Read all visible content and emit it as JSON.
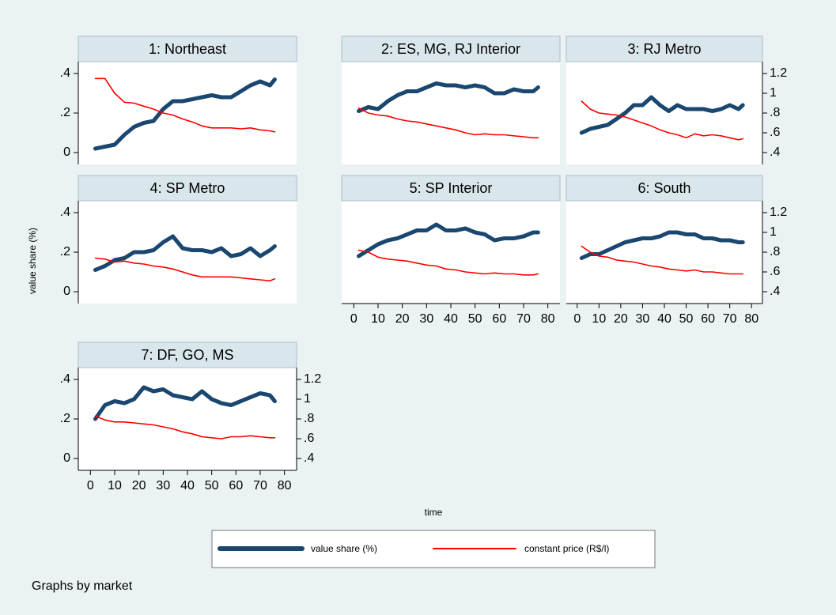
{
  "axes": {
    "xlim": [
      -5,
      85
    ],
    "xticks": [
      0,
      10,
      20,
      30,
      40,
      50,
      60,
      70,
      80
    ],
    "ylim": [
      -0.06,
      0.46
    ],
    "yticks": [
      0,
      {
        "value": 0.2,
        "label": ".2"
      },
      {
        "value": 0.4,
        "label": ".4"
      }
    ],
    "y2lim": [
      0.28,
      1.32
    ],
    "y2ticks": [
      {
        "value": 0.4,
        "label": ".4"
      },
      {
        "value": 0.6,
        "label": ".6"
      },
      {
        "value": 0.8,
        "label": ".8"
      },
      1,
      1.2
    ]
  },
  "ytitle": "value share (%)",
  "xtitle": "time",
  "note": "Graphs by market",
  "chart_data": [
    {
      "type": "line",
      "title": "1: Northeast",
      "x": [
        2,
        6,
        10,
        14,
        18,
        22,
        26,
        30,
        34,
        38,
        42,
        46,
        50,
        54,
        58,
        62,
        66,
        70,
        74,
        76
      ],
      "series": [
        {
          "name": "value share (%)",
          "color": "#1a476f",
          "values": [
            0.02,
            0.03,
            0.04,
            0.09,
            0.13,
            0.15,
            0.16,
            0.22,
            0.26,
            0.26,
            0.27,
            0.28,
            0.29,
            0.28,
            0.28,
            0.31,
            0.34,
            0.36,
            0.34,
            0.37
          ]
        },
        {
          "name": "constant price (R$/l)",
          "color": "#ff0000",
          "axis": "y2",
          "values": [
            1.15,
            1.15,
            1.0,
            0.91,
            0.9,
            0.87,
            0.84,
            0.8,
            0.78,
            0.74,
            0.71,
            0.67,
            0.65,
            0.65,
            0.65,
            0.64,
            0.65,
            0.63,
            0.62,
            0.61
          ]
        }
      ]
    },
    {
      "type": "line",
      "title": "2: ES, MG, RJ Interior",
      "x": [
        2,
        6,
        10,
        14,
        18,
        22,
        26,
        30,
        34,
        38,
        42,
        46,
        50,
        54,
        58,
        62,
        66,
        70,
        74,
        76
      ],
      "series": [
        {
          "name": "value share (%)",
          "color": "#1a476f",
          "values": [
            0.21,
            0.23,
            0.22,
            0.26,
            0.29,
            0.31,
            0.31,
            0.33,
            0.35,
            0.34,
            0.34,
            0.33,
            0.34,
            0.33,
            0.3,
            0.3,
            0.32,
            0.31,
            0.31,
            0.33
          ]
        },
        {
          "name": "constant price (R$/l)",
          "color": "#ff0000",
          "axis": "y2",
          "values": [
            0.85,
            0.8,
            0.78,
            0.77,
            0.74,
            0.72,
            0.71,
            0.69,
            0.67,
            0.65,
            0.63,
            0.6,
            0.58,
            0.59,
            0.58,
            0.58,
            0.57,
            0.56,
            0.55,
            0.55
          ]
        }
      ]
    },
    {
      "type": "line",
      "title": "3: RJ Metro",
      "x": [
        2,
        6,
        10,
        14,
        18,
        22,
        26,
        30,
        34,
        38,
        42,
        46,
        50,
        54,
        58,
        62,
        66,
        70,
        74,
        76
      ],
      "series": [
        {
          "name": "value share (%)",
          "color": "#1a476f",
          "values": [
            0.1,
            0.12,
            0.13,
            0.14,
            0.17,
            0.2,
            0.24,
            0.24,
            0.28,
            0.24,
            0.21,
            0.24,
            0.22,
            0.22,
            0.22,
            0.21,
            0.22,
            0.24,
            0.22,
            0.24
          ]
        },
        {
          "name": "constant price (R$/l)",
          "color": "#ff0000",
          "axis": "y2",
          "values": [
            0.92,
            0.84,
            0.8,
            0.79,
            0.78,
            0.76,
            0.73,
            0.7,
            0.67,
            0.63,
            0.6,
            0.58,
            0.55,
            0.59,
            0.57,
            0.58,
            0.57,
            0.55,
            0.53,
            0.54
          ]
        }
      ]
    },
    {
      "type": "line",
      "title": "4: SP Metro",
      "x": [
        2,
        6,
        10,
        14,
        18,
        22,
        26,
        30,
        34,
        38,
        42,
        46,
        50,
        54,
        58,
        62,
        66,
        70,
        74,
        76
      ],
      "series": [
        {
          "name": "value share (%)",
          "color": "#1a476f",
          "values": [
            0.11,
            0.13,
            0.16,
            0.17,
            0.2,
            0.2,
            0.21,
            0.25,
            0.28,
            0.22,
            0.21,
            0.21,
            0.2,
            0.22,
            0.18,
            0.19,
            0.22,
            0.18,
            0.21,
            0.23
          ]
        },
        {
          "name": "constant price (R$/l)",
          "color": "#ff0000",
          "axis": "y2",
          "values": [
            0.74,
            0.73,
            0.7,
            0.71,
            0.69,
            0.68,
            0.66,
            0.65,
            0.63,
            0.6,
            0.57,
            0.55,
            0.55,
            0.55,
            0.55,
            0.54,
            0.53,
            0.52,
            0.51,
            0.53
          ]
        }
      ]
    },
    {
      "type": "line",
      "title": "5: SP Interior",
      "x": [
        2,
        6,
        10,
        14,
        18,
        22,
        26,
        30,
        34,
        38,
        42,
        46,
        50,
        54,
        58,
        62,
        66,
        70,
        74,
        76
      ],
      "series": [
        {
          "name": "value share (%)",
          "color": "#1a476f",
          "values": [
            0.18,
            0.21,
            0.24,
            0.26,
            0.27,
            0.29,
            0.31,
            0.31,
            0.34,
            0.31,
            0.31,
            0.32,
            0.3,
            0.29,
            0.26,
            0.27,
            0.27,
            0.28,
            0.3,
            0.3
          ]
        },
        {
          "name": "constant price (R$/l)",
          "color": "#ff0000",
          "axis": "y2",
          "values": [
            0.82,
            0.8,
            0.75,
            0.73,
            0.72,
            0.71,
            0.69,
            0.67,
            0.66,
            0.63,
            0.62,
            0.6,
            0.59,
            0.58,
            0.59,
            0.58,
            0.58,
            0.57,
            0.57,
            0.58
          ]
        }
      ]
    },
    {
      "type": "line",
      "title": "6: South",
      "x": [
        2,
        6,
        10,
        14,
        18,
        22,
        26,
        30,
        34,
        38,
        42,
        46,
        50,
        54,
        58,
        62,
        66,
        70,
        74,
        76
      ],
      "series": [
        {
          "name": "value share (%)",
          "color": "#1a476f",
          "values": [
            0.17,
            0.19,
            0.19,
            0.21,
            0.23,
            0.25,
            0.26,
            0.27,
            0.27,
            0.28,
            0.3,
            0.3,
            0.29,
            0.29,
            0.27,
            0.27,
            0.26,
            0.26,
            0.25,
            0.25
          ]
        },
        {
          "name": "constant price (R$/l)",
          "color": "#ff0000",
          "axis": "y2",
          "values": [
            0.86,
            0.8,
            0.76,
            0.75,
            0.72,
            0.71,
            0.7,
            0.68,
            0.66,
            0.65,
            0.63,
            0.62,
            0.61,
            0.62,
            0.6,
            0.6,
            0.59,
            0.58,
            0.58,
            0.58
          ]
        }
      ]
    },
    {
      "type": "line",
      "title": "7: DF, GO, MS",
      "x": [
        2,
        6,
        10,
        14,
        18,
        22,
        26,
        30,
        34,
        38,
        42,
        46,
        50,
        54,
        58,
        62,
        66,
        70,
        74,
        76
      ],
      "series": [
        {
          "name": "value share (%)",
          "color": "#1a476f",
          "values": [
            0.2,
            0.27,
            0.29,
            0.28,
            0.3,
            0.36,
            0.34,
            0.35,
            0.32,
            0.31,
            0.3,
            0.34,
            0.3,
            0.28,
            0.27,
            0.29,
            0.31,
            0.33,
            0.32,
            0.29
          ]
        },
        {
          "name": "constant price (R$/l)",
          "color": "#ff0000",
          "axis": "y2",
          "values": [
            0.83,
            0.79,
            0.77,
            0.77,
            0.76,
            0.75,
            0.74,
            0.72,
            0.7,
            0.67,
            0.65,
            0.62,
            0.61,
            0.6,
            0.62,
            0.62,
            0.63,
            0.62,
            0.61,
            0.61
          ]
        }
      ]
    }
  ]
}
